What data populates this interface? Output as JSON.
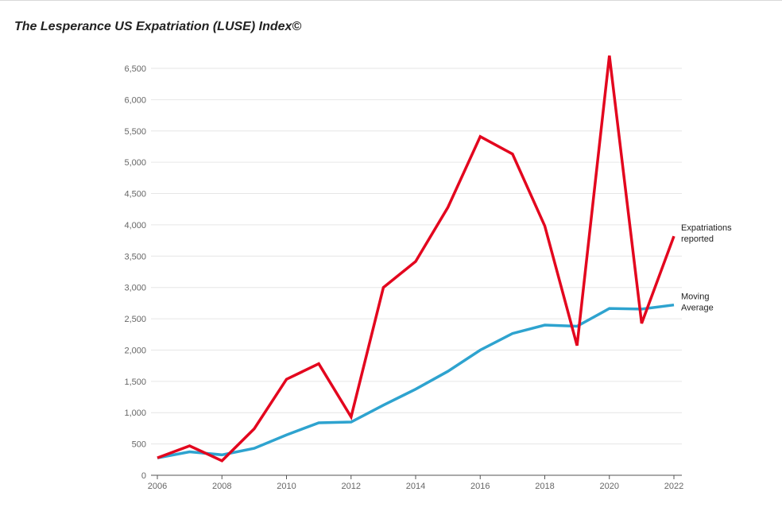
{
  "chart_data": {
    "type": "line",
    "title": "The Lesperance US Expatriation (LUSE) Index©",
    "xlabel": "",
    "ylabel": "",
    "x": [
      2006,
      2007,
      2008,
      2009,
      2010,
      2011,
      2012,
      2013,
      2014,
      2015,
      2016,
      2017,
      2018,
      2019,
      2020,
      2021,
      2022
    ],
    "x_ticks": [
      "2006",
      "2008",
      "2010",
      "2012",
      "2014",
      "2016",
      "2018",
      "2020",
      "2022"
    ],
    "y_ticks": [
      "0",
      "500",
      "1,000",
      "1,500",
      "2,000",
      "2,500",
      "3,000",
      "3,500",
      "4,000",
      "4,500",
      "5,000",
      "5,500",
      "6,000",
      "6,500"
    ],
    "xlim": [
      2006,
      2022
    ],
    "ylim": [
      0,
      6500
    ],
    "grid": true,
    "series": [
      {
        "name": "Expatriations reported",
        "label_lines": [
          "Expatriations",
          "reported"
        ],
        "color": "#e3061e",
        "values": [
          278,
          470,
          231,
          743,
          1534,
          1781,
          932,
          2999,
          3415,
          4279,
          5411,
          5132,
          3983,
          2072,
          6705,
          2426,
          3819
        ]
      },
      {
        "name": "Moving Average",
        "label_lines": [
          "Moving",
          "Average"
        ],
        "color": "#2ea3cf",
        "values": [
          278,
          374,
          326,
          430,
          645,
          838,
          850,
          1120,
          1375,
          1660,
          2000,
          2265,
          2400,
          2380,
          2665,
          2655,
          2720
        ]
      }
    ]
  }
}
